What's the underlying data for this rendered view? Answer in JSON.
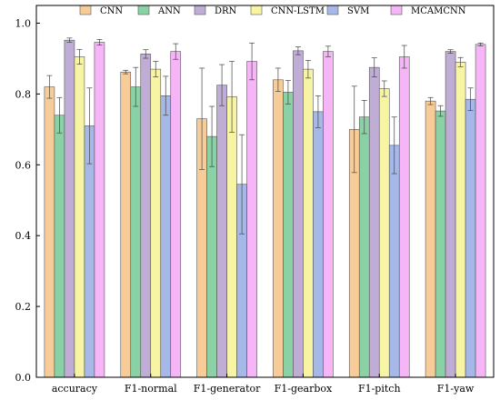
{
  "chart_data": {
    "type": "bar",
    "title": "",
    "xlabel": "",
    "ylabel": "",
    "ylim": [
      0,
      1.05
    ],
    "yticks": [
      "0.0",
      "0.2",
      "0.4",
      "0.6",
      "0.8",
      "1.0"
    ],
    "grid": false,
    "legend_position": "top",
    "categories": [
      "accuracy",
      "F1-normal",
      "F1-generator",
      "F1-gearbox",
      "F1-pitch",
      "F1-yaw"
    ],
    "series": [
      {
        "name": "CNN",
        "color": "#F8CC99",
        "values": [
          0.82,
          0.862,
          0.73,
          0.84,
          0.7,
          0.78
        ],
        "errors": [
          0.032,
          0.005,
          0.143,
          0.033,
          0.122,
          0.01
        ]
      },
      {
        "name": "ANN",
        "color": "#8BD1A6",
        "values": [
          0.74,
          0.82,
          0.68,
          0.805,
          0.735,
          0.752
        ],
        "errors": [
          0.05,
          0.055,
          0.085,
          0.033,
          0.047,
          0.015
        ]
      },
      {
        "name": "DRN",
        "color": "#C0ADD6",
        "values": [
          0.952,
          0.913,
          0.825,
          0.922,
          0.875,
          0.92
        ],
        "errors": [
          0.006,
          0.012,
          0.058,
          0.011,
          0.027,
          0.005
        ]
      },
      {
        "name": "CNN-LSTM",
        "color": "#F7F5A4",
        "values": [
          0.905,
          0.87,
          0.792,
          0.87,
          0.815,
          0.89
        ],
        "errors": [
          0.021,
          0.022,
          0.1,
          0.025,
          0.022,
          0.013
        ]
      },
      {
        "name": "SVM",
        "color": "#A6B8E8",
        "values": [
          0.71,
          0.795,
          0.545,
          0.75,
          0.655,
          0.785
        ],
        "errors": [
          0.107,
          0.055,
          0.14,
          0.045,
          0.08,
          0.032
        ]
      },
      {
        "name": "MCAMCNN",
        "color": "#F5B5F6",
        "values": [
          0.946,
          0.92,
          0.892,
          0.92,
          0.905,
          0.94
        ],
        "errors": [
          0.008,
          0.022,
          0.052,
          0.015,
          0.032,
          0.004
        ]
      }
    ]
  }
}
